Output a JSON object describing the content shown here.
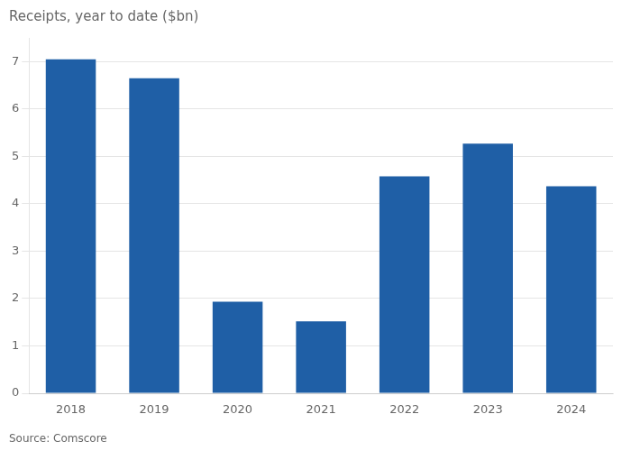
{
  "chart_data": {
    "type": "bar",
    "title": "Receipts, year to date ($bn)",
    "categories": [
      "2018",
      "2019",
      "2020",
      "2021",
      "2022",
      "2023",
      "2024"
    ],
    "values": [
      7.05,
      6.65,
      1.93,
      1.52,
      4.58,
      5.27,
      4.37
    ],
    "color": "#1f5fa6",
    "ylim": [
      0,
      7.5
    ],
    "yticks": [
      0,
      1,
      2,
      3,
      4,
      5,
      6,
      7
    ],
    "grid": true,
    "annotations": [
      "Source: Comscore"
    ]
  }
}
